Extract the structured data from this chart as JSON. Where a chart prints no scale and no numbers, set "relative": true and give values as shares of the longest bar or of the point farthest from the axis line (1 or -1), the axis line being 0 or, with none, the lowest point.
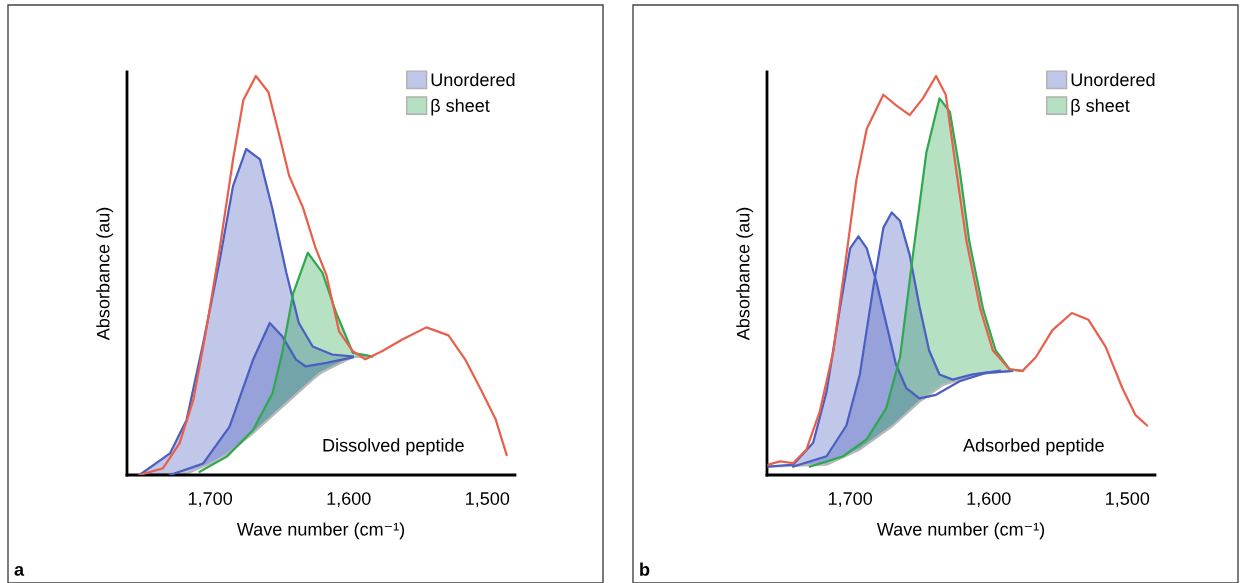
{
  "chart_data": [
    {
      "type": "line",
      "relative": true,
      "xlabel": "Wave number (cm⁻¹)",
      "ylabel": "Absorbance (au)",
      "xlim": [
        1760,
        1480
      ],
      "xticks": [
        {
          "value": 1700,
          "label": "1,700"
        },
        {
          "value": 1600,
          "label": "1,600"
        },
        {
          "value": 1500,
          "label": "1,500"
        }
      ],
      "legend": "top right",
      "grid": false,
      "annotations": [
        "Dissolved peptide",
        "a"
      ],
      "series": [
        {
          "color": "#b8b8b8",
          "x": [
            1751,
            1717,
            1693,
            1669,
            1645,
            1621,
            1597,
            1583
          ],
          "values": [
            0,
            0.004,
            0.038,
            0.105,
            0.18,
            0.255,
            0.296,
            0.297
          ]
        },
        {
          "type": "area",
          "name": "Unordered",
          "color": "#4b5fc0",
          "x": [
            1751,
            1729,
            1717,
            1705,
            1693,
            1683.5,
            1674,
            1664,
            1655,
            1645,
            1636,
            1626,
            1612,
            1597
          ],
          "values": [
            0,
            0.054,
            0.138,
            0.331,
            0.54,
            0.724,
            0.817,
            0.791,
            0.666,
            0.507,
            0.381,
            0.322,
            0.302,
            0.297
          ]
        },
        {
          "type": "area",
          "color": "#4b5fc0",
          "x": [
            1729,
            1705,
            1686,
            1669,
            1657,
            1648,
            1638,
            1631,
            1616,
            1597
          ],
          "values": [
            0,
            0.029,
            0.121,
            0.289,
            0.381,
            0.348,
            0.289,
            0.272,
            0.281,
            0.295
          ]
        },
        {
          "type": "area",
          "name": "β sheet",
          "color": "#2fa84f",
          "x": [
            1707.5,
            1688,
            1669,
            1655,
            1648,
            1640,
            1629.5,
            1619,
            1609,
            1597,
            1583
          ],
          "values": [
            0.008,
            0.046,
            0.113,
            0.205,
            0.306,
            0.456,
            0.557,
            0.507,
            0.406,
            0.306,
            0.297
          ]
        },
        {
          "color": "#e8604c",
          "x": [
            1751,
            1734,
            1722,
            1712,
            1703,
            1693,
            1683.5,
            1676,
            1667,
            1658,
            1650,
            1643,
            1633,
            1624,
            1616,
            1607,
            1597,
            1588,
            1576,
            1561,
            1544,
            1528,
            1516,
            1504,
            1494,
            1486
          ],
          "values": [
            0,
            0.017,
            0.08,
            0.19,
            0.36,
            0.57,
            0.79,
            0.94,
            1.0,
            0.96,
            0.85,
            0.75,
            0.67,
            0.57,
            0.5,
            0.36,
            0.31,
            0.29,
            0.31,
            0.34,
            0.37,
            0.35,
            0.29,
            0.21,
            0.14,
            0.05
          ]
        }
      ]
    },
    {
      "type": "line",
      "relative": true,
      "xlabel": "Wave number (cm⁻¹)",
      "ylabel": "Absorbance (au)",
      "xlim": [
        1760,
        1480
      ],
      "xticks": [
        {
          "value": 1700,
          "label": "1,700"
        },
        {
          "value": 1600,
          "label": "1,600"
        },
        {
          "value": 1500,
          "label": "1,500"
        }
      ],
      "legend": "top right",
      "grid": false,
      "annotations": [
        "Adsorbed peptide",
        "b"
      ],
      "series": [
        {
          "color": "#b8b8b8",
          "x": [
            1759,
            1717,
            1693,
            1669,
            1650,
            1633,
            1609,
            1583
          ],
          "values": [
            0.021,
            0.026,
            0.064,
            0.124,
            0.184,
            0.226,
            0.252,
            0.261
          ]
        },
        {
          "type": "area",
          "name": "Unordered",
          "color": "#4b5fc0",
          "x": [
            1759,
            1741,
            1726.7,
            1717,
            1707.5,
            1700,
            1694,
            1688,
            1681,
            1674,
            1667,
            1659.5,
            1650,
            1638,
            1621,
            1602,
            1583
          ],
          "values": [
            0.021,
            0.026,
            0.081,
            0.209,
            0.415,
            0.568,
            0.598,
            0.568,
            0.483,
            0.38,
            0.278,
            0.218,
            0.192,
            0.201,
            0.235,
            0.256,
            0.261
          ]
        },
        {
          "type": "area",
          "color": "#4b5fc0",
          "x": [
            1741,
            1717,
            1702.7,
            1693,
            1683.5,
            1676,
            1670,
            1664,
            1657,
            1650,
            1643,
            1635.5,
            1626,
            1611.6,
            1592
          ],
          "values": [
            0.021,
            0.047,
            0.124,
            0.252,
            0.466,
            0.62,
            0.658,
            0.637,
            0.551,
            0.423,
            0.312,
            0.252,
            0.239,
            0.252,
            0.261
          ]
        },
        {
          "type": "area",
          "name": "β sheet",
          "color": "#2fa84f",
          "x": [
            1729,
            1705,
            1688,
            1674,
            1664,
            1654.7,
            1645,
            1635.5,
            1628,
            1621,
            1614,
            1604,
            1595,
            1585,
            1575.6
          ],
          "values": [
            0.021,
            0.047,
            0.09,
            0.167,
            0.295,
            0.551,
            0.808,
            0.944,
            0.91,
            0.765,
            0.585,
            0.415,
            0.312,
            0.265,
            0.261
          ]
        },
        {
          "color": "#e8604c",
          "x": [
            1759,
            1750.6,
            1741,
            1731.5,
            1722,
            1712,
            1702.7,
            1695.5,
            1688,
            1676,
            1667,
            1657,
            1647.5,
            1638,
            1631,
            1623.5,
            1616,
            1606,
            1597,
            1585,
            1575.6,
            1566,
            1554,
            1540,
            1528,
            1515.6,
            1503.6,
            1494,
            1485.7
          ],
          "values": [
            0.026,
            0.034,
            0.03,
            0.064,
            0.158,
            0.312,
            0.551,
            0.739,
            0.868,
            0.953,
            0.927,
            0.902,
            0.944,
            1.0,
            0.953,
            0.765,
            0.585,
            0.415,
            0.312,
            0.265,
            0.261,
            0.295,
            0.363,
            0.406,
            0.389,
            0.321,
            0.218,
            0.15,
            0.124
          ]
        }
      ]
    }
  ]
}
